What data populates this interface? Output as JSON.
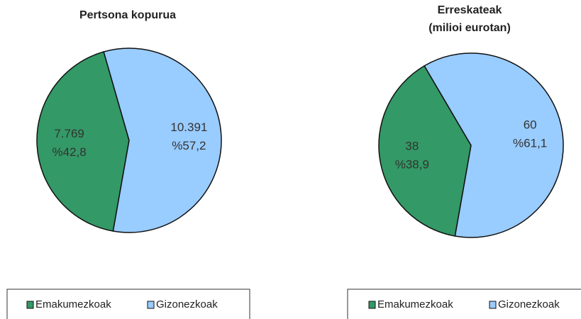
{
  "chart_data": [
    {
      "type": "pie",
      "title": [
        "Pertsona kopurua"
      ],
      "categories": [
        "Emakumezkoak",
        "Gizonezkoak"
      ],
      "values": [
        7769,
        10391
      ],
      "value_labels": [
        "7.769",
        "10.391"
      ],
      "percents": [
        42.8,
        57.2
      ],
      "percent_labels": [
        "%42,8",
        "%57,2"
      ],
      "colors": [
        "#339966",
        "#99ccff"
      ],
      "legend": "bottom"
    },
    {
      "type": "pie",
      "title": [
        "Erreskateak",
        "(milioi  eurotan)"
      ],
      "categories": [
        "Emakumezkoak",
        "Gizonezkoak"
      ],
      "values": [
        38,
        60
      ],
      "percents": [
        38.9,
        61.1
      ],
      "percent_labels": [
        "%38,9",
        "%61,1"
      ],
      "colors": [
        "#339966",
        "#99ccff"
      ],
      "legend": "bottom"
    }
  ]
}
